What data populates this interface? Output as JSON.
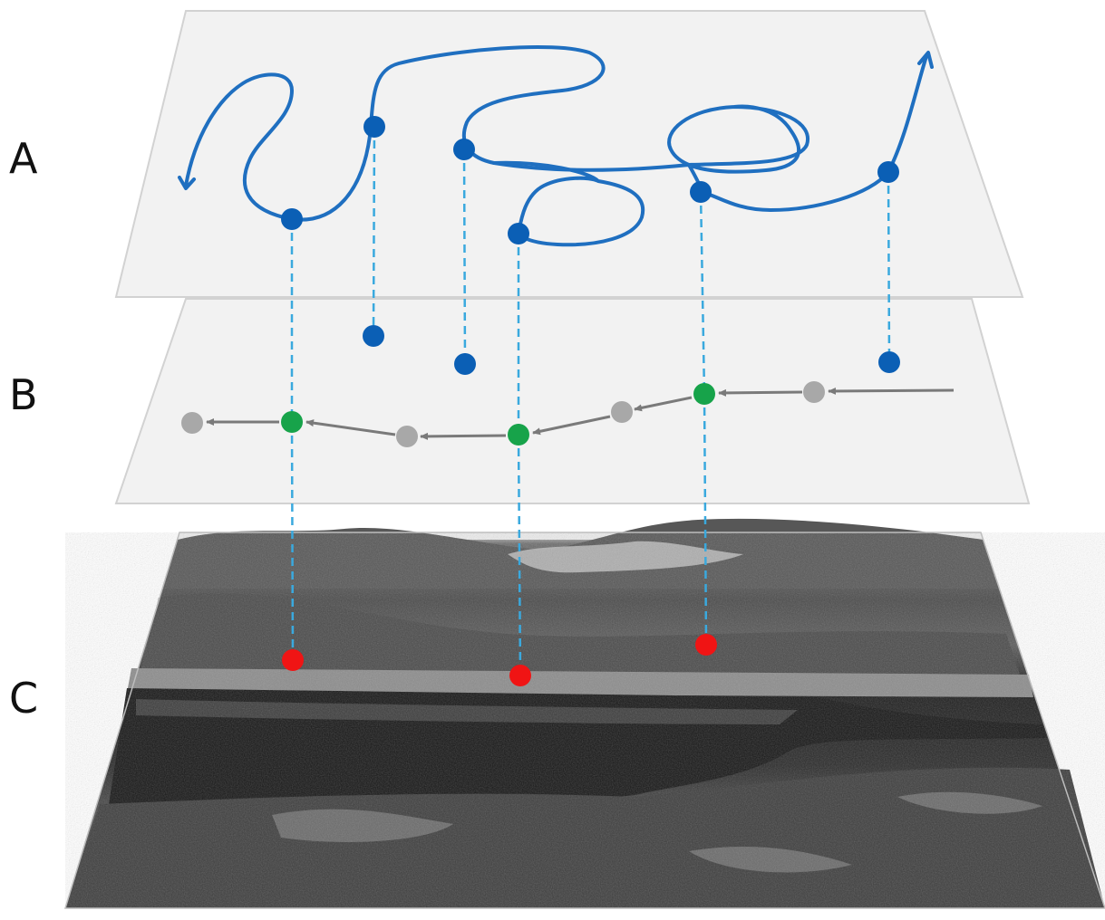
{
  "layers": {
    "a": {
      "label": "A"
    },
    "b": {
      "label": "B"
    },
    "c": {
      "label": "C"
    }
  },
  "colors": {
    "plane_fill": "#f1f1f1",
    "plane_edge": "#d2d2d2",
    "trajectory": "#1f6fc0",
    "point_blue": "#0b5fb5",
    "connector": "#3aa9de",
    "point_green": "#17a34a",
    "point_grey": "#a8a8a8",
    "arrow_grey": "#7a7a7a",
    "point_red": "#f01414"
  },
  "icons": {
    "trajectory_start": "arrowhead-icon",
    "trajectory_end": "arrowhead-icon"
  }
}
